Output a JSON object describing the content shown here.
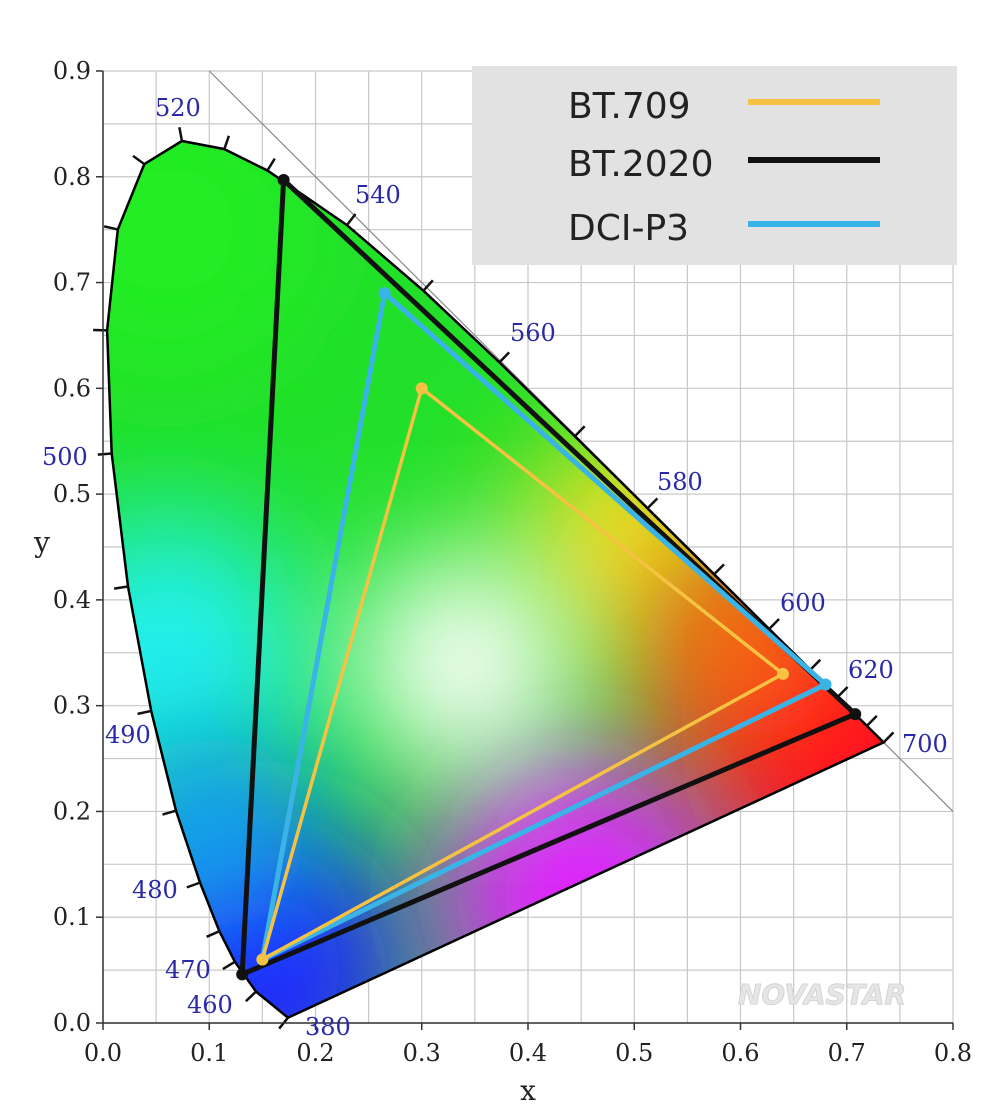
{
  "chart_data": {
    "type": "scatter",
    "title": "",
    "xlabel": "x",
    "ylabel": "y",
    "xlim": [
      0.0,
      0.8
    ],
    "ylim": [
      0.0,
      0.9
    ],
    "xticks": [
      "0.0",
      "0.1",
      "0.2",
      "0.3",
      "0.4",
      "0.5",
      "0.6",
      "0.7",
      "0.8"
    ],
    "yticks": [
      "0.0",
      "0.1",
      "0.2",
      "0.3",
      "0.4",
      "0.5",
      "0.6",
      "0.7",
      "0.8",
      "0.9"
    ],
    "grid": true,
    "grid_step": 0.05,
    "legend_position": "top-right",
    "spectral_locus": [
      [
        380,
        0.1741,
        0.005
      ],
      [
        460,
        0.144,
        0.0297
      ],
      [
        470,
        0.1241,
        0.0578
      ],
      [
        475,
        0.1096,
        0.0868
      ],
      [
        480,
        0.0913,
        0.1327
      ],
      [
        485,
        0.0687,
        0.2007
      ],
      [
        490,
        0.0454,
        0.295
      ],
      [
        495,
        0.0235,
        0.4127
      ],
      [
        500,
        0.0082,
        0.5384
      ],
      [
        505,
        0.0039,
        0.6548
      ],
      [
        510,
        0.0139,
        0.7502
      ],
      [
        515,
        0.0389,
        0.812
      ],
      [
        520,
        0.0743,
        0.8338
      ],
      [
        525,
        0.1142,
        0.8262
      ],
      [
        530,
        0.1547,
        0.8059
      ],
      [
        540,
        0.2296,
        0.7543
      ],
      [
        550,
        0.3016,
        0.6923
      ],
      [
        560,
        0.3731,
        0.6245
      ],
      [
        570,
        0.4441,
        0.5547
      ],
      [
        580,
        0.5125,
        0.4866
      ],
      [
        590,
        0.5752,
        0.4242
      ],
      [
        600,
        0.627,
        0.3725
      ],
      [
        610,
        0.6658,
        0.334
      ],
      [
        620,
        0.6915,
        0.3083
      ],
      [
        640,
        0.719,
        0.2809
      ],
      [
        700,
        0.7347,
        0.2653
      ]
    ],
    "wavelength_labels": [
      "380",
      "460",
      "470",
      "480",
      "490",
      "500",
      "520",
      "540",
      "560",
      "580",
      "600",
      "620",
      "700"
    ],
    "reference_line": "x + y = 1",
    "series": [
      {
        "name": "BT.709",
        "color": "#f5c242",
        "points": [
          [
            0.64,
            0.33
          ],
          [
            0.3,
            0.6
          ],
          [
            0.15,
            0.06
          ]
        ]
      },
      {
        "name": "BT.2020",
        "color": "#111111",
        "points": [
          [
            0.708,
            0.292
          ],
          [
            0.17,
            0.797
          ],
          [
            0.131,
            0.046
          ]
        ]
      },
      {
        "name": "DCI-P3",
        "color": "#3ab4e6",
        "points": [
          [
            0.68,
            0.32
          ],
          [
            0.265,
            0.69
          ],
          [
            0.15,
            0.06
          ]
        ]
      }
    ]
  },
  "watermark": "NOVASTAR"
}
